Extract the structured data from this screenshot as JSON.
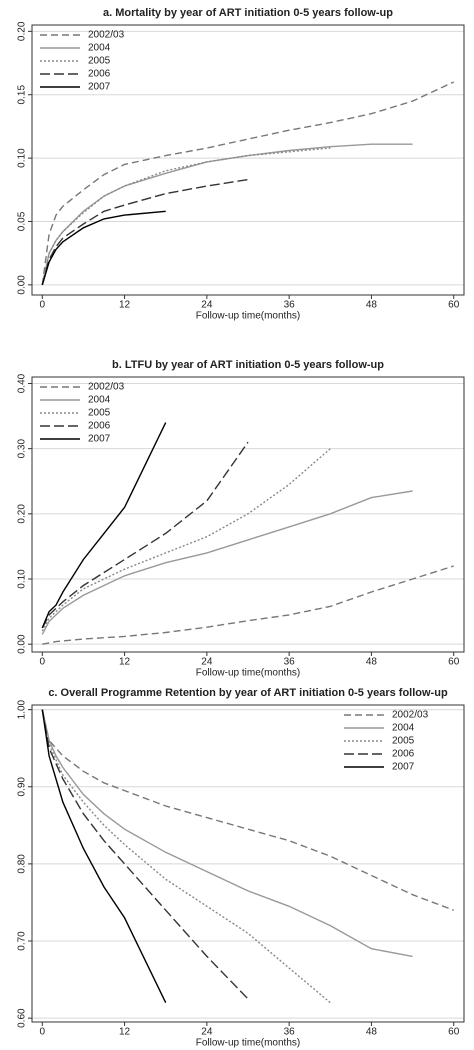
{
  "chart_data": [
    {
      "type": "line",
      "title": "a. Mortality by year of ART initiation 0-5 years follow-up",
      "x_label": "Follow-up time(months)",
      "x": [
        0,
        1,
        2,
        3,
        6,
        9,
        12,
        18,
        24,
        30,
        36,
        42,
        48,
        54,
        60
      ],
      "series": [
        {
          "name": "2002/03",
          "color": "#777777",
          "dash": "7,4",
          "values": [
            0,
            0.04,
            0.055,
            0.062,
            0.075,
            0.087,
            0.095,
            0.102,
            0.108,
            0.115,
            0.122,
            0.128,
            0.135,
            0.145,
            0.16
          ]
        },
        {
          "name": "2004",
          "color": "#999999",
          "dash": "none",
          "values": [
            0,
            0.025,
            0.035,
            0.042,
            0.058,
            0.07,
            0.078,
            0.088,
            0.097,
            0.102,
            0.106,
            0.109,
            0.111,
            0.111,
            null
          ]
        },
        {
          "name": "2005",
          "color": "#888888",
          "dash": "2,2",
          "values": [
            0,
            0.025,
            0.035,
            0.042,
            0.057,
            0.07,
            0.078,
            0.09,
            0.097,
            0.102,
            0.105,
            0.108,
            null,
            null,
            null
          ]
        },
        {
          "name": "2006",
          "color": "#333333",
          "dash": "10,4",
          "values": [
            0,
            0.02,
            0.03,
            0.037,
            0.048,
            0.058,
            0.063,
            0.072,
            0.078,
            0.083,
            null,
            null,
            null,
            null,
            null
          ]
        },
        {
          "name": "2007",
          "color": "#000000",
          "dash": "none",
          "values": [
            0,
            0.018,
            0.028,
            0.034,
            0.045,
            0.052,
            0.055,
            0.058,
            null,
            null,
            null,
            null,
            null,
            null,
            null
          ]
        }
      ],
      "xlim": [
        -1.5,
        61.5
      ],
      "xticks": [
        0,
        12,
        24,
        36,
        48,
        60
      ],
      "ylim": [
        -0.008,
        0.205
      ],
      "yticks": [
        {
          "value": 0,
          "label": "0.00"
        },
        0.05,
        {
          "value": 0.1,
          "label": "0.10"
        },
        0.15,
        {
          "value": 0.2,
          "label": "0.20"
        }
      ],
      "grid": true,
      "legend": "upper left"
    },
    {
      "type": "line",
      "title": "b. LTFU by year of ART initiation 0-5 years follow-up",
      "x_label": "Follow-up time(months)",
      "x": [
        0,
        1,
        2,
        3,
        6,
        9,
        12,
        18,
        24,
        30,
        36,
        42,
        48,
        54,
        60
      ],
      "series": [
        {
          "name": "2002/03",
          "color": "#777777",
          "dash": "7,4",
          "values": [
            0,
            0.002,
            0.004,
            0.005,
            0.008,
            0.01,
            0.012,
            0.018,
            0.026,
            0.036,
            0.045,
            0.058,
            0.08,
            0.1,
            0.12
          ]
        },
        {
          "name": "2004",
          "color": "#999999",
          "dash": "none",
          "values": [
            0.015,
            0.035,
            0.045,
            0.055,
            0.075,
            0.09,
            0.105,
            0.125,
            0.14,
            0.16,
            0.18,
            0.2,
            0.225,
            0.235,
            null
          ]
        },
        {
          "name": "2005",
          "color": "#888888",
          "dash": "2,2",
          "values": [
            0.02,
            0.04,
            0.05,
            0.06,
            0.085,
            0.1,
            0.115,
            0.14,
            0.165,
            0.2,
            0.245,
            0.3,
            null,
            null,
            null
          ]
        },
        {
          "name": "2006",
          "color": "#333333",
          "dash": "10,4",
          "values": [
            0.025,
            0.045,
            0.055,
            0.065,
            0.09,
            0.11,
            0.13,
            0.17,
            0.22,
            0.31,
            null,
            null,
            null,
            null,
            null
          ]
        },
        {
          "name": "2007",
          "color": "#000000",
          "dash": "none",
          "values": [
            0.025,
            0.05,
            0.06,
            0.08,
            0.13,
            0.17,
            0.21,
            0.34,
            null,
            null,
            null,
            null,
            null,
            null,
            null
          ]
        }
      ],
      "xlim": [
        -1.5,
        61.5
      ],
      "xticks": [
        0,
        12,
        24,
        36,
        48,
        60
      ],
      "ylim": [
        -0.012,
        0.41
      ],
      "yticks": [
        {
          "value": 0,
          "label": "0.00"
        },
        {
          "value": 0.1,
          "label": "0.10"
        },
        {
          "value": 0.2,
          "label": "0.20"
        },
        {
          "value": 0.3,
          "label": "0.30"
        },
        {
          "value": 0.4,
          "label": "0.40"
        }
      ],
      "grid": true,
      "legend": "upper left"
    },
    {
      "type": "line",
      "title": "c. Overall Programme Retention by year of ART initiation 0-5 years follow-up",
      "x_label": "Follow-up time(months)",
      "x": [
        0,
        1,
        2,
        3,
        6,
        9,
        12,
        18,
        24,
        30,
        36,
        42,
        48,
        54,
        60
      ],
      "series": [
        {
          "name": "2002/03",
          "color": "#777777",
          "dash": "7,4",
          "values": [
            1,
            0.96,
            0.95,
            0.94,
            0.92,
            0.905,
            0.895,
            0.875,
            0.86,
            0.845,
            0.83,
            0.81,
            0.785,
            0.76,
            0.74
          ]
        },
        {
          "name": "2004",
          "color": "#999999",
          "dash": "none",
          "values": [
            1,
            0.96,
            0.94,
            0.925,
            0.89,
            0.865,
            0.845,
            0.815,
            0.79,
            0.765,
            0.745,
            0.72,
            0.69,
            0.68,
            null
          ]
        },
        {
          "name": "2005",
          "color": "#888888",
          "dash": "2,2",
          "values": [
            1,
            0.955,
            0.935,
            0.915,
            0.88,
            0.85,
            0.825,
            0.78,
            0.745,
            0.71,
            0.665,
            0.62,
            null,
            null,
            null
          ]
        },
        {
          "name": "2006",
          "color": "#333333",
          "dash": "10,4",
          "values": [
            1,
            0.95,
            0.93,
            0.91,
            0.865,
            0.83,
            0.8,
            0.74,
            0.68,
            0.625,
            null,
            null,
            null,
            null,
            null
          ]
        },
        {
          "name": "2007",
          "color": "#000000",
          "dash": "none",
          "values": [
            1,
            0.94,
            0.91,
            0.88,
            0.82,
            0.77,
            0.73,
            0.62,
            null,
            null,
            null,
            null,
            null,
            null,
            null
          ]
        }
      ],
      "xlim": [
        -1.5,
        61.5
      ],
      "xticks": [
        0,
        12,
        24,
        36,
        48,
        60
      ],
      "ylim": [
        0.595,
        1.006
      ],
      "yticks": [
        {
          "value": 0.6,
          "label": "0.60"
        },
        {
          "value": 0.7,
          "label": "0.70"
        },
        {
          "value": 0.8,
          "label": "0.80"
        },
        {
          "value": 0.9,
          "label": "0.90"
        },
        {
          "value": 1,
          "label": "1.00"
        }
      ],
      "grid": true,
      "legend": "upper right"
    }
  ]
}
